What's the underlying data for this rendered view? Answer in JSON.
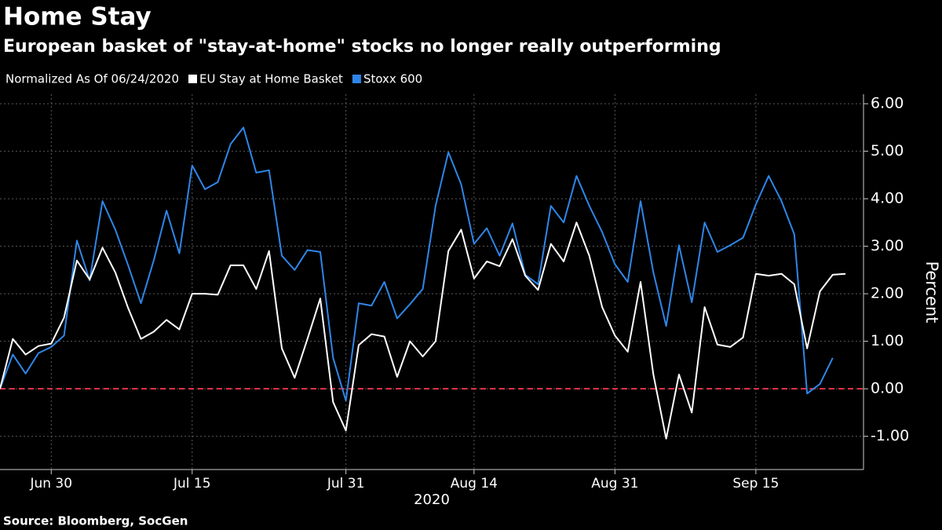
{
  "chart_data": {
    "type": "line",
    "title": "Home Stay",
    "subtitle": "European basket of \"stay-at-home\" stocks no longer really outperforming",
    "legend_title": "Normalized As Of 06/24/2020",
    "source": "Source: Bloomberg, SocGen",
    "x_label": "2020",
    "y_label": "Percent",
    "categories": [
      null,
      null,
      null,
      null,
      "Jun 30",
      null,
      null,
      null,
      null,
      null,
      null,
      null,
      null,
      null,
      null,
      "Jul 15",
      null,
      null,
      null,
      null,
      null,
      null,
      null,
      null,
      null,
      null,
      null,
      "Jul 31",
      null,
      null,
      null,
      null,
      null,
      null,
      null,
      null,
      null,
      "Aug 14",
      null,
      null,
      null,
      null,
      null,
      null,
      null,
      null,
      null,
      null,
      "Aug 31",
      null,
      null,
      null,
      null,
      null,
      null,
      null,
      null,
      null,
      null,
      "Sep 15",
      null,
      null,
      null,
      null,
      null,
      null,
      null
    ],
    "series": [
      {
        "name": "EU Stay at Home Basket",
        "color": "#ffffff",
        "values": [
          0,
          1.05,
          0.72,
          0.9,
          0.95,
          1.5,
          2.7,
          2.3,
          2.97,
          2.45,
          1.7,
          1.05,
          1.2,
          1.45,
          1.25,
          2.0,
          2.0,
          1.98,
          2.6,
          2.6,
          2.1,
          2.9,
          0.85,
          0.23,
          1.05,
          1.9,
          -0.28,
          -0.88,
          0.92,
          1.15,
          1.1,
          0.25,
          1.0,
          0.68,
          1.0,
          2.9,
          3.35,
          2.32,
          2.68,
          2.58,
          3.15,
          2.38,
          2.08,
          3.05,
          2.68,
          3.5,
          2.8,
          1.72,
          1.12,
          0.78,
          2.25,
          0.3,
          -1.05,
          0.3,
          -0.5,
          1.72,
          0.93,
          0.88,
          1.08,
          2.42,
          2.38,
          2.42,
          2.2,
          0.85,
          2.05,
          2.4,
          2.42
        ]
      },
      {
        "name": "Stoxx 600",
        "color": "#2f86e8",
        "values": [
          0,
          0.72,
          0.32,
          0.75,
          0.88,
          1.12,
          3.12,
          2.28,
          3.95,
          3.35,
          2.6,
          1.8,
          2.7,
          3.75,
          2.85,
          4.7,
          4.2,
          4.35,
          5.15,
          5.5,
          4.55,
          4.6,
          2.8,
          2.5,
          2.92,
          2.88,
          0.65,
          -0.25,
          1.8,
          1.75,
          2.25,
          1.48,
          1.78,
          2.1,
          3.85,
          4.98,
          4.3,
          3.05,
          3.38,
          2.8,
          3.48,
          2.4,
          2.2,
          3.85,
          3.5,
          4.48,
          3.85,
          3.3,
          2.62,
          2.25,
          3.95,
          2.45,
          1.32,
          3.02,
          1.82,
          3.5,
          2.88,
          3.02,
          3.18,
          3.88,
          4.48,
          3.95,
          3.25,
          -0.1,
          0.1,
          0.65,
          null
        ]
      }
    ],
    "ylim": [
      -1.7,
      6.2
    ],
    "yticks": [
      {
        "value": -1,
        "label": "-1.00"
      },
      {
        "value": 0,
        "label": "0.00"
      },
      {
        "value": 1,
        "label": "1.00"
      },
      {
        "value": 2,
        "label": "2.00"
      },
      {
        "value": 3,
        "label": "3.00"
      },
      {
        "value": 4,
        "label": "4.00"
      },
      {
        "value": 5,
        "label": "5.00"
      },
      {
        "value": 6,
        "label": "6.00"
      }
    ],
    "grid": true,
    "reference_line": {
      "value": 0,
      "color": "#e8334a"
    }
  }
}
